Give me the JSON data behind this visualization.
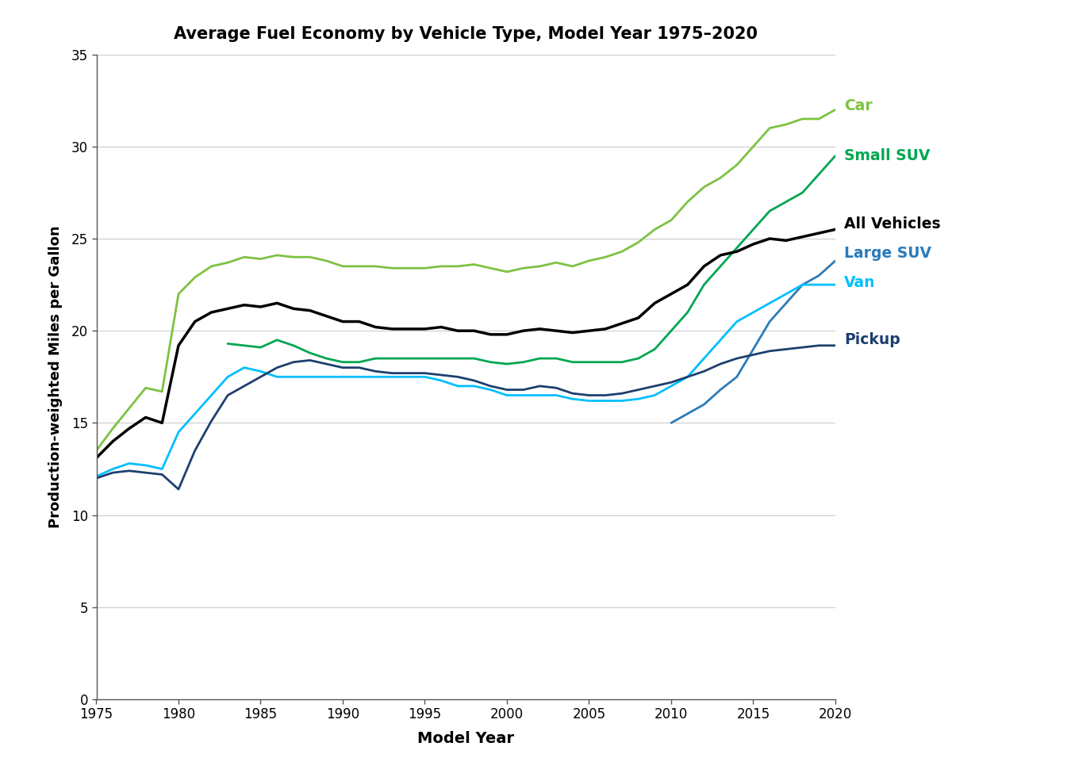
{
  "title": "Average Fuel Economy by Vehicle Type, Model Year 1975–2020",
  "xlabel": "Model Year",
  "ylabel": "Production-weighted Miles per Gallon",
  "years": [
    1975,
    1976,
    1977,
    1978,
    1979,
    1980,
    1981,
    1982,
    1983,
    1984,
    1985,
    1986,
    1987,
    1988,
    1989,
    1990,
    1991,
    1992,
    1993,
    1994,
    1995,
    1996,
    1997,
    1998,
    1999,
    2000,
    2001,
    2002,
    2003,
    2004,
    2005,
    2006,
    2007,
    2008,
    2009,
    2010,
    2011,
    2012,
    2013,
    2014,
    2015,
    2016,
    2017,
    2018,
    2019,
    2020
  ],
  "car": [
    13.5,
    14.7,
    15.8,
    16.9,
    16.7,
    22.0,
    22.9,
    23.5,
    23.7,
    24.0,
    23.9,
    24.1,
    24.0,
    24.0,
    23.8,
    23.5,
    23.5,
    23.5,
    23.4,
    23.4,
    23.4,
    23.5,
    23.5,
    23.6,
    23.4,
    23.2,
    23.4,
    23.5,
    23.7,
    23.5,
    23.8,
    24.0,
    24.3,
    24.8,
    25.5,
    26.0,
    27.0,
    27.8,
    28.3,
    29.0,
    30.0,
    31.0,
    31.2,
    31.5,
    31.5,
    32.0
  ],
  "car_color": "#7DC242",
  "small_suv": [
    null,
    null,
    null,
    null,
    null,
    null,
    null,
    null,
    19.3,
    19.2,
    19.1,
    19.5,
    19.2,
    18.8,
    18.5,
    18.3,
    18.3,
    18.5,
    18.5,
    18.5,
    18.5,
    18.5,
    18.5,
    18.5,
    18.3,
    18.2,
    18.3,
    18.5,
    18.5,
    18.3,
    18.3,
    18.3,
    18.3,
    18.5,
    19.0,
    20.0,
    21.0,
    22.5,
    23.5,
    24.5,
    25.5,
    26.5,
    27.0,
    27.5,
    28.5,
    29.5
  ],
  "small_suv_color": "#00A651",
  "all_vehicles": [
    13.1,
    14.0,
    14.7,
    15.3,
    15.0,
    19.2,
    20.5,
    21.0,
    21.2,
    21.4,
    21.3,
    21.5,
    21.2,
    21.1,
    20.8,
    20.5,
    20.5,
    20.2,
    20.1,
    20.1,
    20.1,
    20.2,
    20.0,
    20.0,
    19.8,
    19.8,
    20.0,
    20.1,
    20.0,
    19.9,
    20.0,
    20.1,
    20.4,
    20.7,
    21.5,
    22.0,
    22.5,
    23.5,
    24.1,
    24.3,
    24.7,
    25.0,
    24.9,
    25.1,
    25.3,
    25.5
  ],
  "all_vehicles_color": "#000000",
  "large_suv": [
    null,
    null,
    null,
    null,
    null,
    null,
    null,
    null,
    null,
    null,
    null,
    null,
    null,
    null,
    null,
    null,
    null,
    null,
    null,
    null,
    null,
    null,
    null,
    null,
    null,
    null,
    null,
    null,
    null,
    null,
    null,
    null,
    null,
    null,
    null,
    15.0,
    15.5,
    16.0,
    16.8,
    17.5,
    19.0,
    20.5,
    21.5,
    22.5,
    23.0,
    23.8
  ],
  "large_suv_color": "#2B7BBA",
  "van": [
    12.1,
    12.5,
    12.8,
    12.7,
    12.5,
    14.5,
    15.5,
    16.5,
    17.5,
    18.0,
    17.8,
    17.5,
    17.5,
    17.5,
    17.5,
    17.5,
    17.5,
    17.5,
    17.5,
    17.5,
    17.5,
    17.3,
    17.0,
    17.0,
    16.8,
    16.5,
    16.5,
    16.5,
    16.5,
    16.3,
    16.2,
    16.2,
    16.2,
    16.3,
    16.5,
    17.0,
    17.5,
    18.5,
    19.5,
    20.5,
    21.0,
    21.5,
    22.0,
    22.5,
    22.5,
    22.5
  ],
  "van_color": "#00BFFF",
  "pickup": [
    12.0,
    12.3,
    12.4,
    12.3,
    12.2,
    11.4,
    13.5,
    15.1,
    16.5,
    17.0,
    17.5,
    18.0,
    18.3,
    18.4,
    18.2,
    18.0,
    18.0,
    17.8,
    17.7,
    17.7,
    17.7,
    17.6,
    17.5,
    17.3,
    17.0,
    16.8,
    16.8,
    17.0,
    16.9,
    16.6,
    16.5,
    16.5,
    16.6,
    16.8,
    17.0,
    17.2,
    17.5,
    17.8,
    18.2,
    18.5,
    18.7,
    18.9,
    19.0,
    19.1,
    19.2,
    19.2
  ],
  "pickup_color": "#1C3F6E",
  "ylim": [
    0,
    35
  ],
  "yticks": [
    0,
    5,
    10,
    15,
    20,
    25,
    30,
    35
  ],
  "xticks": [
    1975,
    1980,
    1985,
    1990,
    1995,
    2000,
    2005,
    2010,
    2015,
    2020
  ],
  "labels": {
    "Car": {
      "y": 32.2,
      "color": "#7DC242"
    },
    "Small SUV": {
      "y": 29.5,
      "color": "#00A651"
    },
    "All Vehicles": {
      "y": 25.8,
      "color": "#000000"
    },
    "Large SUV": {
      "y": 24.2,
      "color": "#2B7BBA"
    },
    "Van": {
      "y": 22.6,
      "color": "#00BFFF"
    },
    "Pickup": {
      "y": 19.5,
      "color": "#1C3F6E"
    }
  }
}
